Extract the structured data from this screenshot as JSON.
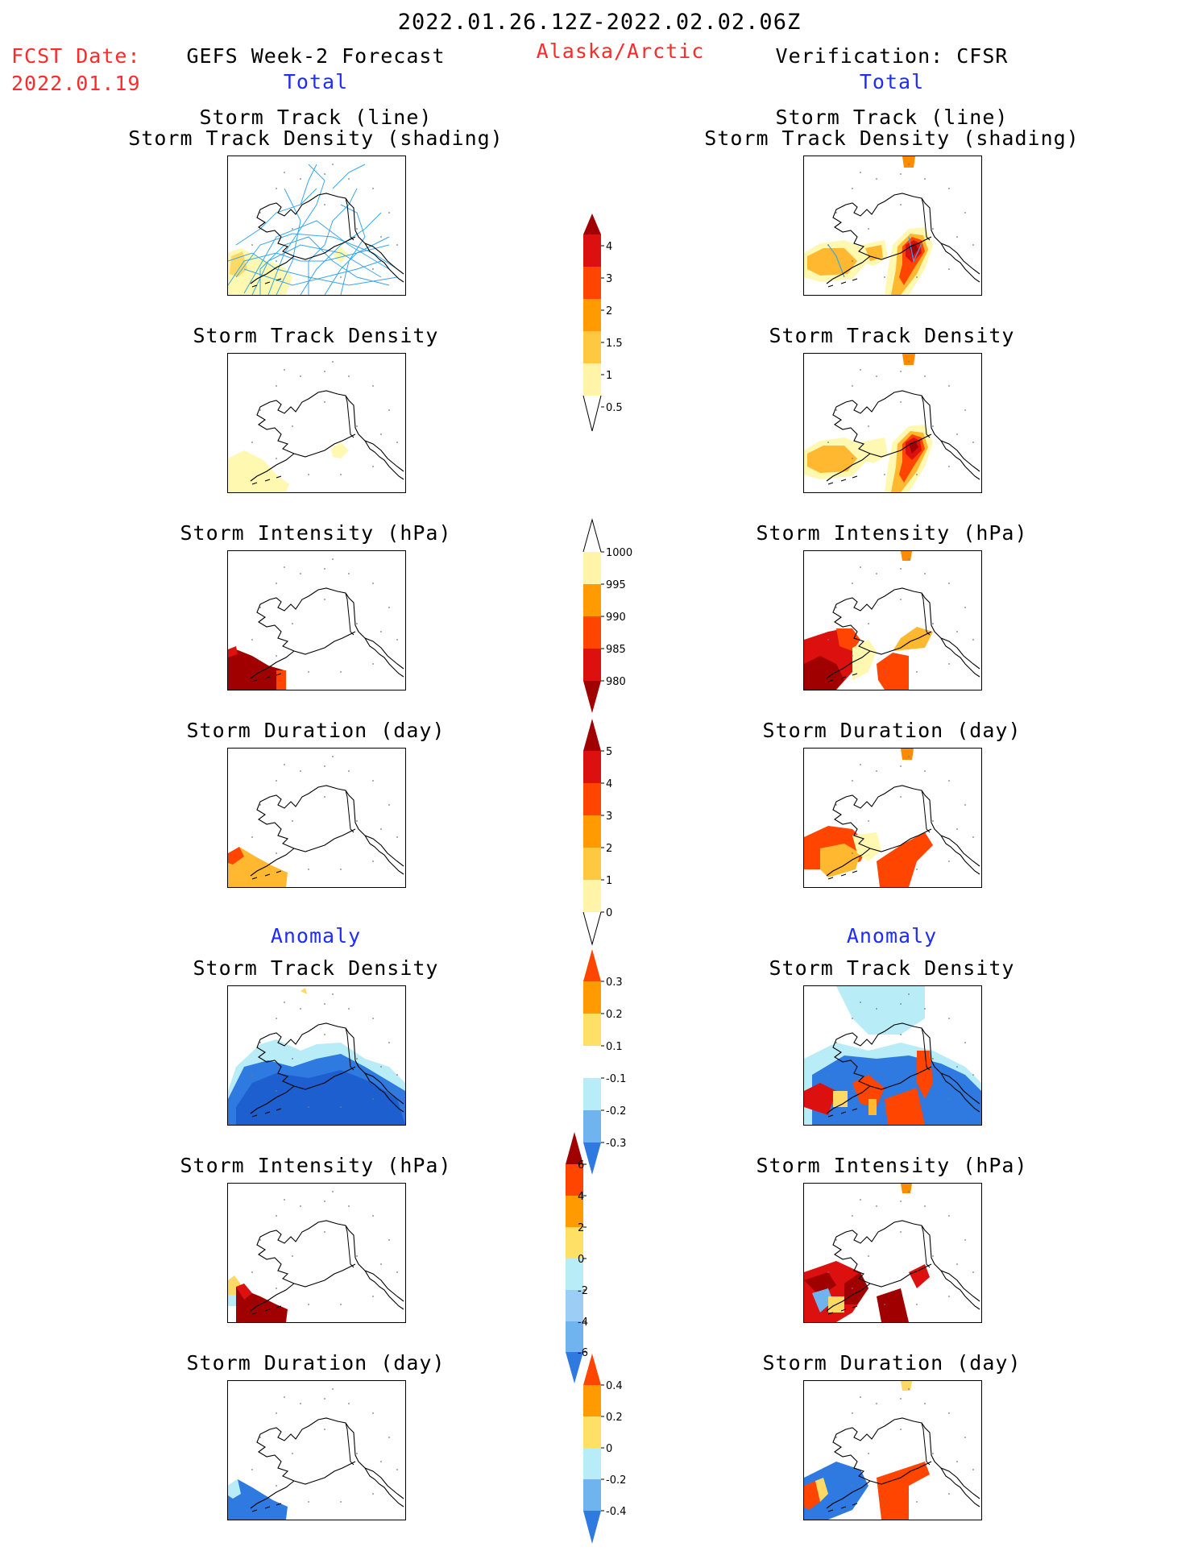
{
  "header": {
    "date_range": "2022.01.26.12Z-2022.02.02.06Z",
    "fcst_label": "FCST Date:",
    "fcst_date": "2022.01.19",
    "left_title": "GEFS Week-2 Forecast",
    "region": "Alaska/Arctic",
    "right_title": "Verification: CFSR",
    "left_total": "Total",
    "right_total": "Total"
  },
  "section_labels": {
    "left_anomaly": "Anomaly",
    "right_anomaly": "Anomaly"
  },
  "panel_titles": {
    "storm_track_line": "Storm Track (line)",
    "storm_track_density_shading": "Storm Track Density (shading)",
    "storm_track_density": "Storm Track Density",
    "storm_intensity": "Storm Intensity (hPa)",
    "storm_duration": "Storm Duration (day)"
  },
  "colorbars": {
    "track_density": [
      "4",
      "3",
      "2",
      "1.5",
      "1",
      "0.5"
    ],
    "intensity": [
      "1000",
      "995",
      "990",
      "985",
      "980"
    ],
    "duration": [
      "5",
      "4",
      "3",
      "2",
      "1",
      "0"
    ],
    "anom_density": [
      "0.3",
      "0.2",
      "0.1",
      "-0.1",
      "-0.2",
      "-0.3"
    ],
    "anom_intensity": [
      "6",
      "4",
      "2",
      "0",
      "-2",
      "-4",
      "-6"
    ],
    "anom_duration": [
      "0.4",
      "0.2",
      "0",
      "-0.2",
      "-0.4"
    ]
  },
  "colors": {
    "track_line": "#3aa6e8",
    "yellow_light": "#fff8b0",
    "yellow": "#ffd966",
    "orange_light": "#ffb830",
    "orange": "#ff8c00",
    "red_orange": "#ff4500",
    "red": "#dd1010",
    "dark_red": "#a00000",
    "blue_light": "#b8ecf6",
    "blue_mid": "#6fb4ee",
    "blue": "#2e7ae0",
    "blue_dark": "#1e5fd0",
    "header_red": "#ff2a2a",
    "header_blue": "#1e2cff"
  }
}
